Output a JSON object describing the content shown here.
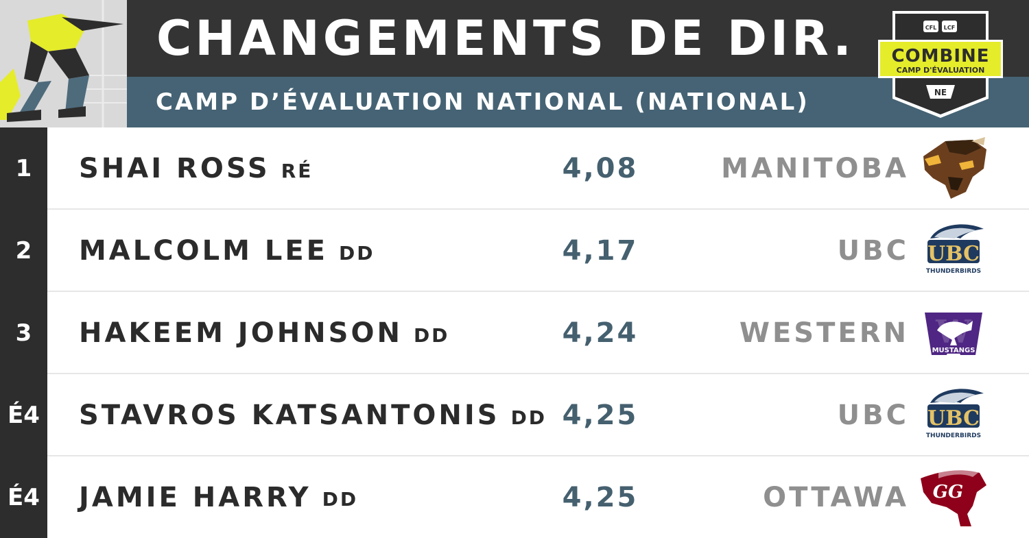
{
  "header": {
    "title": "CHANGEMENTS DE DIR.",
    "subtitle": "CAMP D’ÉVALUATION NATIONAL (NATIONAL)",
    "logo": {
      "leagues": [
        "CFL",
        "LCF"
      ],
      "title": "COMBINE",
      "subtitle": "CAMP D'ÉVALUATION",
      "sponsor": "NE"
    }
  },
  "colors": {
    "title_bar": "#343434",
    "subtitle_bar": "#456374",
    "rank_bg": "#2d2d2d",
    "time_text": "#45606f",
    "school_text": "#8f8f8f",
    "combine_yellow": "#e5ec2a"
  },
  "rows": [
    {
      "rank": "1",
      "name": "SHAI ROSS",
      "position": "RÉ",
      "time": "4,08",
      "school": "MANITOBA",
      "logo": "manitoba-bisons-logo",
      "logo_text": ""
    },
    {
      "rank": "2",
      "name": "MALCOLM LEE",
      "position": "DD",
      "time": "4,17",
      "school": "UBC",
      "logo": "ubc-thunderbirds-logo",
      "logo_text": "UBC",
      "logo_sub": "THUNDERBIRDS"
    },
    {
      "rank": "3",
      "name": "HAKEEM JOHNSON",
      "position": "DD",
      "time": "4,24",
      "school": "WESTERN",
      "logo": "western-mustangs-logo",
      "logo_text": "W",
      "logo_sub": "MUSTANGS"
    },
    {
      "rank": "É4",
      "name": "STAVROS KATSANTONIS",
      "position": "DD",
      "time": "4,25",
      "school": "UBC",
      "logo": "ubc-thunderbirds-logo",
      "logo_text": "UBC",
      "logo_sub": "THUNDERBIRDS"
    },
    {
      "rank": "É4",
      "name": "JAMIE HARRY",
      "position": "DD",
      "time": "4,25",
      "school": "OTTAWA",
      "logo": "ottawa-gee-gees-logo",
      "logo_text": "GG"
    }
  ]
}
